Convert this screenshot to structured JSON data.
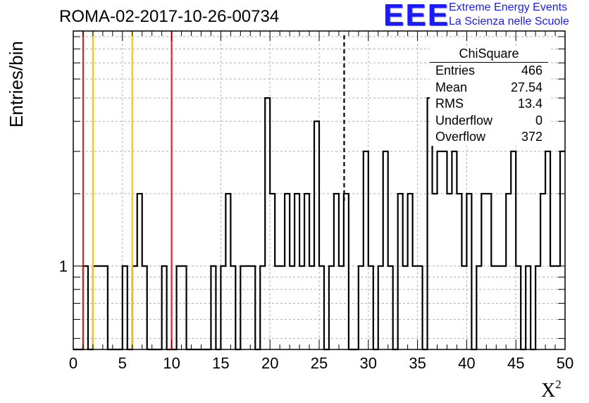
{
  "chart_data": {
    "type": "histogram",
    "title": "ROMA-02-2017-10-26-00734",
    "xlabel": "X",
    "xlabel_superscript": "2",
    "ylabel": "Entries/bin",
    "xlim": [
      0,
      50
    ],
    "ylim_log": [
      0.45,
      9.5
    ],
    "y_scale": "log",
    "bin_width": 0.5,
    "x_ticks": [
      "0",
      "5",
      "10",
      "15",
      "20",
      "25",
      "30",
      "35",
      "40",
      "45",
      "50"
    ],
    "y_tick_label": "1",
    "grid": true,
    "bin_starts": [
      1,
      1.5,
      2,
      2.5,
      3,
      3.5,
      5,
      6,
      6.5,
      7,
      9,
      10,
      10.5,
      11,
      14,
      15,
      15.5,
      16,
      17,
      17.5,
      18,
      19,
      19.5,
      20,
      20.5,
      21,
      21.5,
      22,
      22.5,
      23,
      23.5,
      24,
      24.5,
      25,
      26,
      26.5,
      27,
      27.5,
      28,
      29,
      29.5,
      30,
      31,
      31.5,
      32,
      33,
      33.5,
      34,
      34.5,
      35,
      36,
      36.5,
      37,
      37.5,
      38,
      38.5,
      39,
      39.5,
      40,
      41,
      41.5,
      42,
      42.5,
      43,
      43.5,
      44,
      44.5,
      45,
      46,
      46.5,
      47,
      47.5,
      48,
      48.5,
      49,
      49.5
    ],
    "bin_counts": [
      1,
      0,
      1,
      1,
      1,
      0,
      1,
      1,
      2,
      1,
      1,
      0,
      1,
      1,
      1,
      1,
      2,
      1,
      1,
      1,
      1,
      1,
      5,
      2,
      1,
      1,
      2,
      1,
      2,
      1,
      2,
      1,
      4,
      1,
      1,
      2,
      1,
      2,
      0,
      1,
      3,
      1,
      1,
      3,
      1,
      2,
      1,
      2,
      1,
      1,
      5,
      2,
      3,
      3,
      2,
      3,
      2,
      1,
      2,
      1,
      2,
      2,
      1,
      1,
      1,
      2,
      3,
      1,
      1,
      0,
      1,
      2,
      3,
      1,
      1,
      3
    ],
    "vertical_lines": [
      {
        "x": 1,
        "color": "#e8201e",
        "style": "solid"
      },
      {
        "x": 2,
        "color": "#f5c518",
        "style": "solid"
      },
      {
        "x": 6,
        "color": "#f5c518",
        "style": "solid"
      },
      {
        "x": 10,
        "color": "#e8201e",
        "style": "solid"
      },
      {
        "x": 27.54,
        "color": "#000000",
        "style": "dashed"
      }
    ],
    "stats_box": {
      "title": "ChiSquare",
      "rows": [
        {
          "label": "Entries",
          "value": "466"
        },
        {
          "label": "Mean",
          "value": "27.54"
        },
        {
          "label": "RMS",
          "value": "13.4"
        },
        {
          "label": "Underflow",
          "value": "0"
        },
        {
          "label": "Overflow",
          "value": "372"
        }
      ]
    }
  },
  "logo": {
    "mark": "EEE",
    "line1": "Extreme Energy Events",
    "line2": "La Scienza nelle Scuole"
  }
}
